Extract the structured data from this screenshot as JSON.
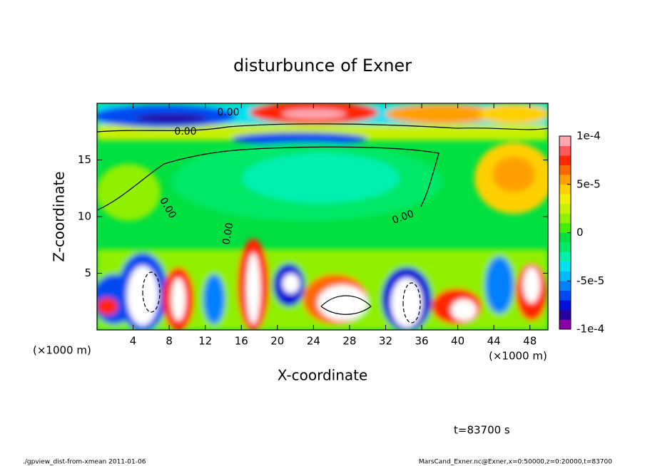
{
  "chart_data": {
    "type": "contour",
    "title": "disturbunce of Exner",
    "x_label": "X-coordinate",
    "y_label": "Z-coordinate",
    "x_unit": "(×1000 m)",
    "y_unit": "(×1000 m)",
    "xlim": [
      0,
      50
    ],
    "ylim": [
      0,
      20
    ],
    "xticks": [
      4,
      8,
      12,
      16,
      20,
      24,
      28,
      32,
      36,
      40,
      44,
      48
    ],
    "yticks": [
      5,
      10,
      15
    ],
    "contour_labels": [
      "0.00",
      "0.00",
      "0.00",
      "0.00",
      "0.00"
    ],
    "colorbar": {
      "lim": [
        -0.0001,
        0.0001
      ],
      "ticks": [
        {
          "value": 0.0001,
          "label": "1e-4"
        },
        {
          "value": 5e-05,
          "label": "5e-5"
        },
        0,
        {
          "value": -5e-05,
          "label": "-5e-5"
        },
        {
          "value": -0.0001,
          "label": "-1e-4"
        }
      ],
      "colors": [
        "#8a00a8",
        "#2800a0",
        "#0010d8",
        "#0048f0",
        "#0080ff",
        "#00b8ff",
        "#00e0f0",
        "#00f0b0",
        "#00e868",
        "#00e040",
        "#40f000",
        "#90f000",
        "#c8f000",
        "#f0f000",
        "#ffd000",
        "#ffa000",
        "#ff6800",
        "#ff2800",
        "#ff5858",
        "#ffa8b0"
      ]
    },
    "time_label": "t=83700 s",
    "footer_left": "./gpview_dist-from-xmean  2011-01-06",
    "footer_right": "MarsCand_Exner.nc@Exner,x=0:50000,z=0:20000,t=83700"
  }
}
